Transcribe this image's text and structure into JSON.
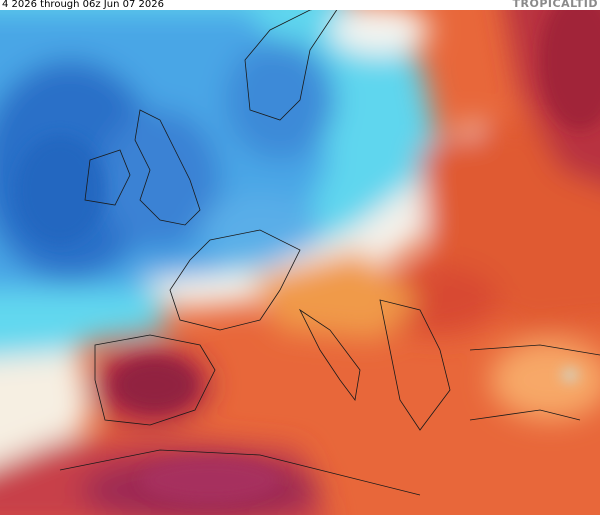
{
  "header": {
    "title": "4 2026 through 06z Jun 07 2026",
    "brand": "TROPICALTID"
  }
}
